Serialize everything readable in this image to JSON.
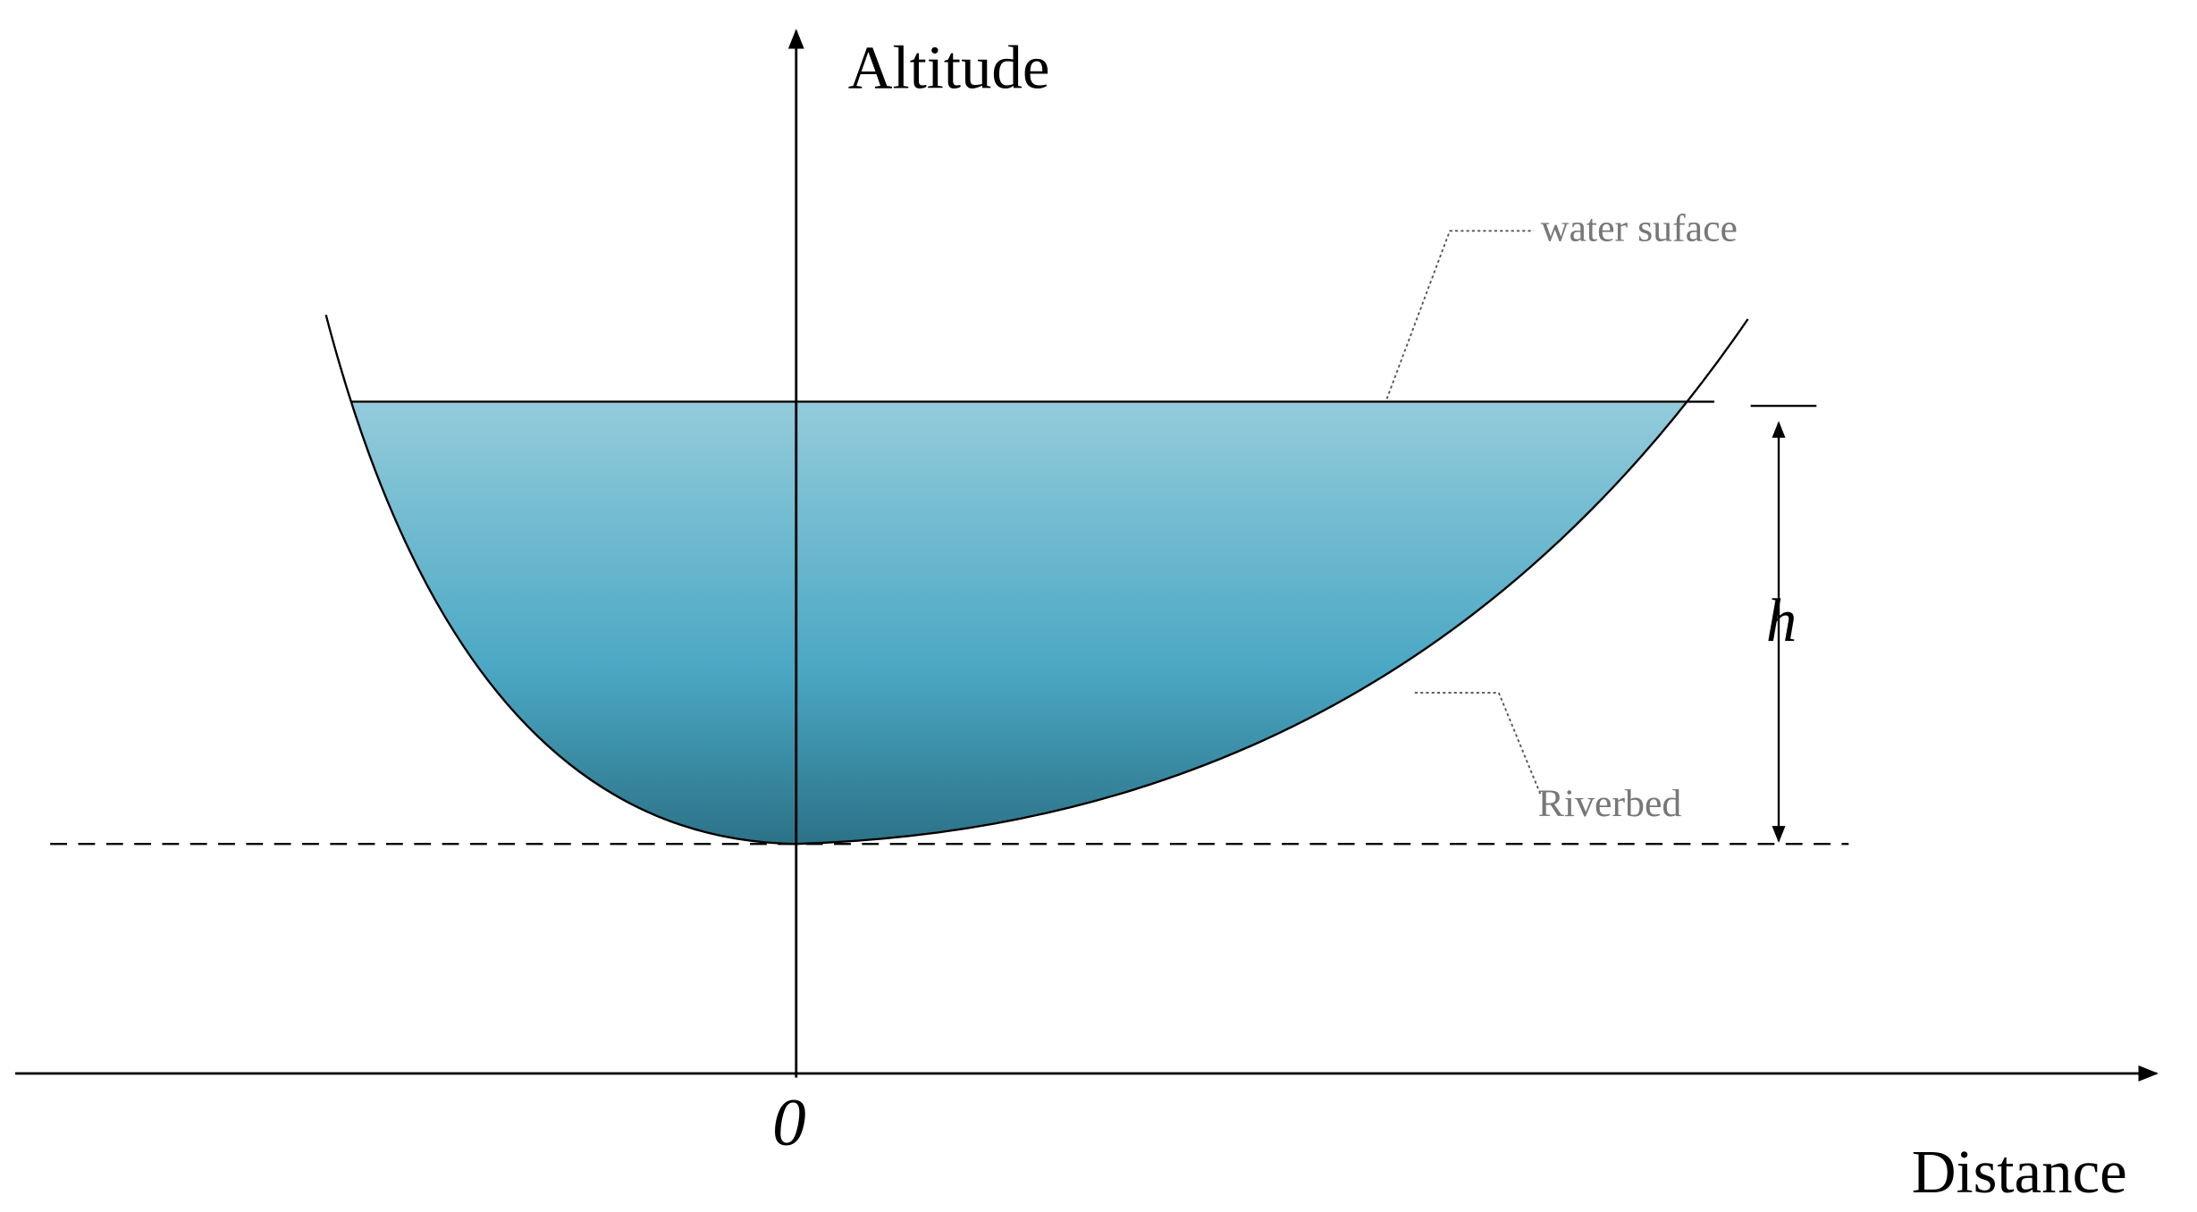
{
  "labels": {
    "y_axis": "Altitude",
    "x_axis": "Distance",
    "origin": "0",
    "height": "h",
    "water_surface": "water suface",
    "riverbed": "Riverbed"
  }
}
